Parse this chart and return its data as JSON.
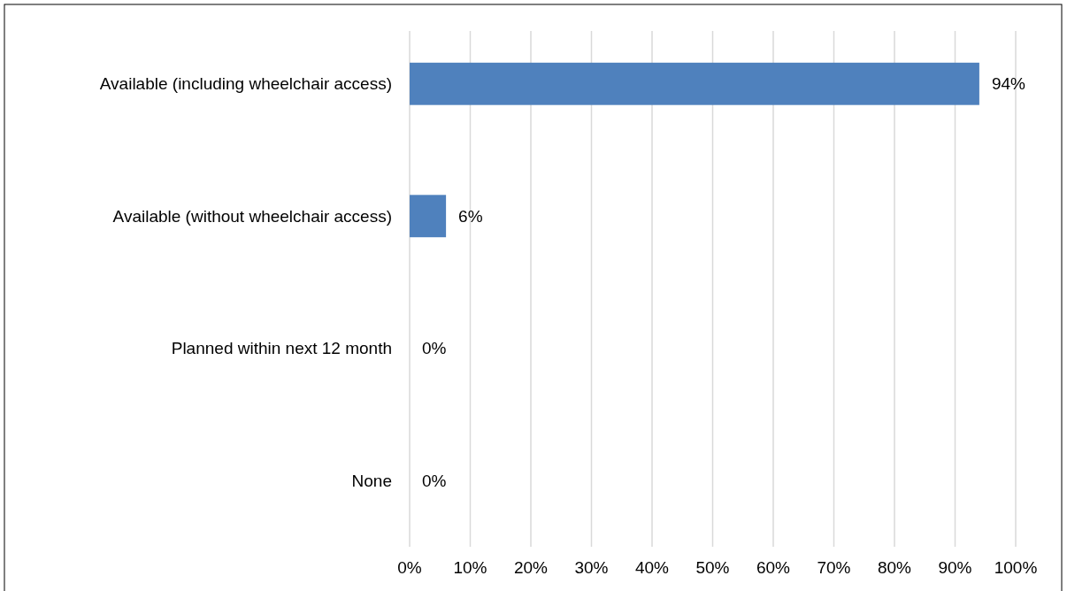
{
  "chart_data": {
    "type": "bar",
    "orientation": "horizontal",
    "categories": [
      "Available (including wheelchair access)",
      "Available (without wheelchair access)",
      "Planned within next 12 month",
      "None"
    ],
    "values": [
      94,
      6,
      0,
      0
    ],
    "value_labels": [
      "94%",
      "6%",
      "0%",
      "0%"
    ],
    "color": "#4f81bd",
    "xlim": [
      0,
      100
    ],
    "xticks": [
      {
        "value": 0,
        "label": "0%"
      },
      {
        "value": 10,
        "label": "10%"
      },
      {
        "value": 20,
        "label": "20%"
      },
      {
        "value": 30,
        "label": "30%"
      },
      {
        "value": 40,
        "label": "40%"
      },
      {
        "value": 50,
        "label": "50%"
      },
      {
        "value": 60,
        "label": "60%"
      },
      {
        "value": 70,
        "label": "70%"
      },
      {
        "value": 80,
        "label": "80%"
      },
      {
        "value": 90,
        "label": "90%"
      },
      {
        "value": 100,
        "label": "100%"
      }
    ],
    "grid": "x"
  }
}
